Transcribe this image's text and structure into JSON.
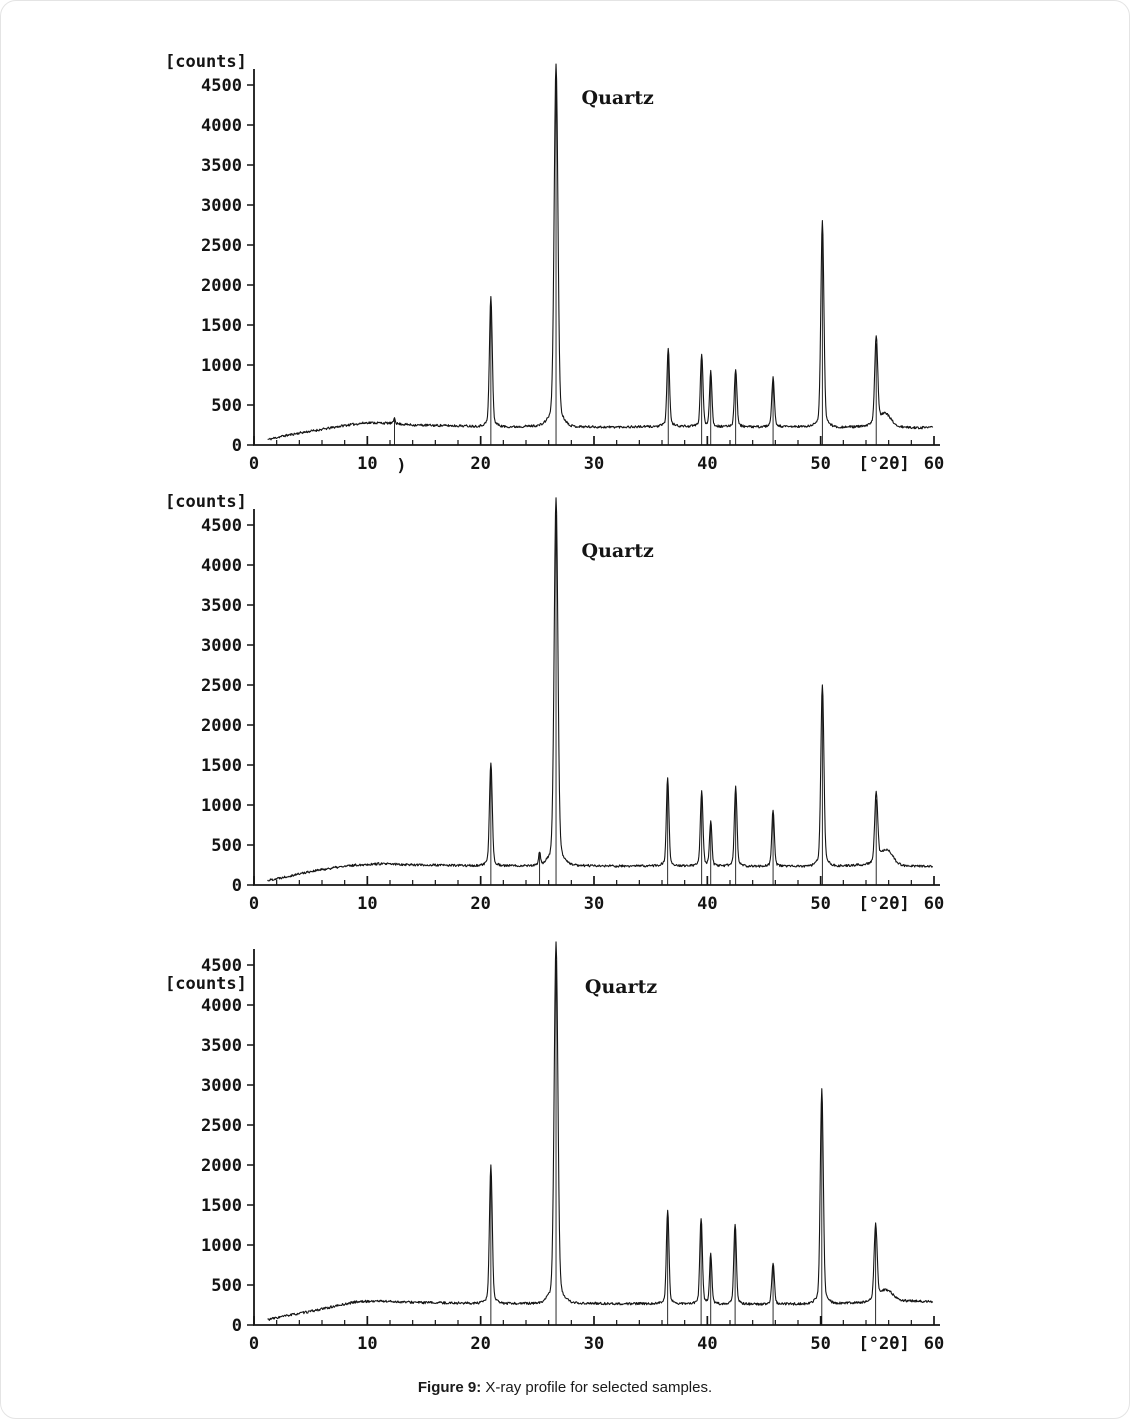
{
  "page": {
    "background": "#ffffff",
    "ink": "#141414"
  },
  "figure": {
    "caption": {
      "label": "Figure 9:",
      "text": " X-ray profile for selected samples."
    }
  },
  "chart_data": [
    {
      "type": "line",
      "name": "xrd-profile-top",
      "title": "",
      "annotation": "Quartz",
      "annotation_pos": {
        "x": 28.9,
        "y": 4260
      },
      "ylabel": "[counts]",
      "xlabel": "[°2θ]",
      "xlim": [
        0,
        60
      ],
      "ylim": [
        0,
        4500
      ],
      "x_ticks": [
        0,
        10,
        20,
        30,
        40,
        50,
        60
      ],
      "y_ticks": [
        0,
        500,
        1000,
        1500,
        2000,
        2500,
        3000,
        3500,
        4000,
        4500
      ],
      "x_minor_tick_step": 2,
      "grid": false,
      "counts_label_below_top": false,
      "stray_text": {
        "text": ")",
        "x": 13.0
      },
      "noise": 30,
      "seed": 11,
      "baseline": [
        [
          1.3,
          70
        ],
        [
          2.5,
          110
        ],
        [
          4,
          150
        ],
        [
          6,
          195
        ],
        [
          8,
          245
        ],
        [
          10,
          280
        ],
        [
          12,
          272
        ],
        [
          14,
          250
        ],
        [
          16,
          245
        ],
        [
          18,
          240
        ],
        [
          20,
          235
        ],
        [
          23,
          228
        ],
        [
          26,
          248
        ],
        [
          28,
          232
        ],
        [
          31,
          224
        ],
        [
          34,
          228
        ],
        [
          37,
          238
        ],
        [
          40,
          232
        ],
        [
          43,
          228
        ],
        [
          46,
          228
        ],
        [
          49,
          232
        ],
        [
          52,
          224
        ],
        [
          55,
          232
        ],
        [
          58,
          214
        ],
        [
          60,
          218
        ]
      ],
      "peaks": [
        {
          "x": 12.4,
          "counts": 340,
          "sigma": 0.07,
          "ref": true
        },
        {
          "x": 20.9,
          "counts": 1780,
          "sigma": 0.12,
          "ref": true
        },
        {
          "x": 26.65,
          "counts": 4560,
          "sigma": 0.16,
          "ref": true
        },
        {
          "x": 36.55,
          "counts": 1160,
          "sigma": 0.11,
          "ref": true
        },
        {
          "x": 39.5,
          "counts": 1100,
          "sigma": 0.11,
          "ref": true
        },
        {
          "x": 40.3,
          "counts": 900,
          "sigma": 0.1,
          "ref": true
        },
        {
          "x": 42.5,
          "counts": 920,
          "sigma": 0.11,
          "ref": true
        },
        {
          "x": 45.8,
          "counts": 810,
          "sigma": 0.11,
          "ref": true
        },
        {
          "x": 50.15,
          "counts": 2670,
          "sigma": 0.13,
          "ref": true
        },
        {
          "x": 54.9,
          "counts": 1270,
          "sigma": 0.13,
          "ref": true
        },
        {
          "x": 55.7,
          "counts": 380,
          "sigma": 0.5,
          "ref": false
        }
      ]
    },
    {
      "type": "line",
      "name": "xrd-profile-middle",
      "title": "",
      "annotation": "Quartz",
      "annotation_pos": {
        "x": 28.9,
        "y": 4100
      },
      "ylabel": "[counts]",
      "xlabel": "[°2θ]",
      "xlim": [
        0,
        60
      ],
      "ylim": [
        0,
        4500
      ],
      "x_ticks": [
        0,
        10,
        20,
        30,
        40,
        50,
        60
      ],
      "y_ticks": [
        0,
        500,
        1000,
        1500,
        2000,
        2500,
        3000,
        3500,
        4000,
        4500
      ],
      "x_minor_tick_step": 2,
      "grid": false,
      "counts_label_below_top": false,
      "noise": 30,
      "seed": 22,
      "baseline": [
        [
          1.3,
          60
        ],
        [
          3,
          110
        ],
        [
          5,
          170
        ],
        [
          7,
          215
        ],
        [
          9,
          250
        ],
        [
          11,
          265
        ],
        [
          13,
          258
        ],
        [
          15,
          250
        ],
        [
          18,
          245
        ],
        [
          21,
          240
        ],
        [
          24,
          244
        ],
        [
          27,
          254
        ],
        [
          30,
          240
        ],
        [
          33,
          235
        ],
        [
          36,
          244
        ],
        [
          39,
          240
        ],
        [
          42,
          240
        ],
        [
          45,
          235
        ],
        [
          48,
          235
        ],
        [
          51,
          240
        ],
        [
          54,
          250
        ],
        [
          57,
          235
        ],
        [
          60,
          230
        ]
      ],
      "peaks": [
        {
          "x": 20.9,
          "counts": 1470,
          "sigma": 0.12,
          "ref": true
        },
        {
          "x": 25.2,
          "counts": 400,
          "sigma": 0.08,
          "ref": true
        },
        {
          "x": 26.65,
          "counts": 4630,
          "sigma": 0.16,
          "ref": true
        },
        {
          "x": 36.5,
          "counts": 1290,
          "sigma": 0.11,
          "ref": true
        },
        {
          "x": 39.5,
          "counts": 1130,
          "sigma": 0.11,
          "ref": true
        },
        {
          "x": 40.3,
          "counts": 770,
          "sigma": 0.1,
          "ref": true
        },
        {
          "x": 42.5,
          "counts": 1190,
          "sigma": 0.11,
          "ref": true
        },
        {
          "x": 45.8,
          "counts": 910,
          "sigma": 0.11,
          "ref": true
        },
        {
          "x": 50.15,
          "counts": 2400,
          "sigma": 0.13,
          "ref": true
        },
        {
          "x": 54.9,
          "counts": 1070,
          "sigma": 0.13,
          "ref": true
        },
        {
          "x": 55.8,
          "counts": 430,
          "sigma": 0.55,
          "ref": false
        }
      ]
    },
    {
      "type": "line",
      "name": "xrd-profile-bottom",
      "title": "",
      "annotation": "Quartz",
      "annotation_pos": {
        "x": 29.2,
        "y": 4150
      },
      "ylabel": "[counts]",
      "xlabel": "[°2θ]",
      "xlim": [
        0,
        60
      ],
      "ylim": [
        0,
        4500
      ],
      "x_ticks": [
        0,
        10,
        20,
        30,
        40,
        50,
        60
      ],
      "y_ticks": [
        0,
        500,
        1000,
        1500,
        2000,
        2500,
        3000,
        3500,
        4000,
        4500
      ],
      "x_minor_tick_step": 2,
      "grid": false,
      "counts_label_below_top": true,
      "noise": 30,
      "seed": 33,
      "baseline": [
        [
          1.3,
          70
        ],
        [
          3,
          120
        ],
        [
          5,
          170
        ],
        [
          7,
          230
        ],
        [
          9,
          290
        ],
        [
          11,
          300
        ],
        [
          13,
          288
        ],
        [
          15,
          280
        ],
        [
          18,
          275
        ],
        [
          21,
          270
        ],
        [
          24,
          270
        ],
        [
          27,
          280
        ],
        [
          30,
          270
        ],
        [
          33,
          265
        ],
        [
          36,
          270
        ],
        [
          39,
          265
        ],
        [
          42,
          265
        ],
        [
          45,
          260
        ],
        [
          48,
          265
        ],
        [
          51,
          270
        ],
        [
          54,
          280
        ],
        [
          57,
          300
        ],
        [
          60,
          290
        ]
      ],
      "peaks": [
        {
          "x": 20.9,
          "counts": 1920,
          "sigma": 0.12,
          "ref": true
        },
        {
          "x": 26.65,
          "counts": 4560,
          "sigma": 0.16,
          "ref": true
        },
        {
          "x": 36.5,
          "counts": 1390,
          "sigma": 0.11,
          "ref": true
        },
        {
          "x": 39.45,
          "counts": 1290,
          "sigma": 0.11,
          "ref": true
        },
        {
          "x": 40.3,
          "counts": 860,
          "sigma": 0.1,
          "ref": true
        },
        {
          "x": 42.45,
          "counts": 1220,
          "sigma": 0.11,
          "ref": true
        },
        {
          "x": 45.8,
          "counts": 760,
          "sigma": 0.11,
          "ref": true
        },
        {
          "x": 50.1,
          "counts": 2820,
          "sigma": 0.13,
          "ref": true
        },
        {
          "x": 54.85,
          "counts": 1190,
          "sigma": 0.13,
          "ref": true
        },
        {
          "x": 55.8,
          "counts": 430,
          "sigma": 0.55,
          "ref": false
        }
      ]
    }
  ]
}
